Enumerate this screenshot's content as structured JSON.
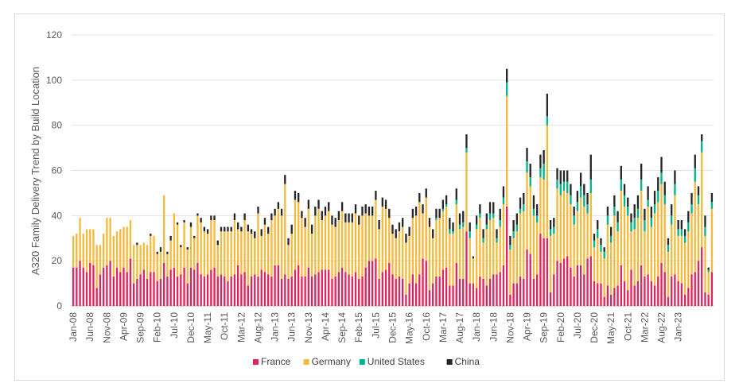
{
  "chart_data": {
    "type": "bar",
    "stacked": true,
    "title": "",
    "ylabel": "A320 Family Delivery Trend by Build Location",
    "xlabel": "",
    "ylim": [
      0,
      120
    ],
    "yticks": [
      0,
      20,
      40,
      60,
      80,
      100,
      120
    ],
    "grid": true,
    "legend_position": "bottom",
    "start_month": "Jan-08",
    "x_tick_labels": [
      "Jan-08",
      "Jun-08",
      "Nov-08",
      "Apr-09",
      "Sep-09",
      "Feb-10",
      "Jul-10",
      "Dec-10",
      "May-11",
      "Oct-11",
      "Mar-12",
      "Aug-12",
      "Jan-13",
      "Jun-13",
      "Nov-13",
      "Apr-14",
      "Sep-14",
      "Feb-15",
      "Jul-15",
      "Dec-15",
      "May-16",
      "Oct-16",
      "Mar-17",
      "Aug-17",
      "Jan-18",
      "Jun-18",
      "Nov-18",
      "Apr-19",
      "Sep-19",
      "Feb-20",
      "Jul-20",
      "Dec-20",
      "May-21",
      "Oct-21",
      "Mar-22",
      "Aug-22",
      "Jan-23"
    ],
    "series": [
      {
        "name": "France",
        "color": "#e0245e",
        "values": [
          17,
          17,
          20,
          17,
          15,
          19,
          18,
          8,
          14,
          17,
          18,
          20,
          13,
          17,
          15,
          17,
          15,
          21,
          10,
          12,
          14,
          16,
          12,
          15,
          15,
          11,
          12,
          19,
          13,
          16,
          17,
          13,
          14,
          17,
          10,
          17,
          16,
          19,
          14,
          13,
          14,
          16,
          17,
          13,
          14,
          13,
          11,
          13,
          14,
          18,
          14,
          15,
          9,
          13,
          14,
          13,
          16,
          15,
          14,
          13,
          18,
          18,
          12,
          14,
          12,
          13,
          16,
          18,
          13,
          13,
          17,
          13,
          14,
          15,
          16,
          16,
          16,
          12,
          13,
          15,
          17,
          15,
          14,
          13,
          15,
          12,
          13,
          17,
          20,
          20,
          21,
          12,
          15,
          16,
          19,
          14,
          12,
          13,
          12,
          5,
          10,
          14,
          10,
          14,
          21,
          20,
          7,
          10,
          13,
          13,
          16,
          17,
          9,
          9,
          19,
          12,
          12,
          33,
          10,
          10,
          8,
          13,
          12,
          9,
          12,
          14,
          14,
          15,
          18,
          44,
          5,
          10,
          10,
          13,
          12,
          25,
          23,
          12,
          14,
          32,
          30,
          30,
          6,
          14,
          20,
          19,
          21,
          22,
          17,
          13,
          18,
          18,
          14,
          21,
          22,
          11,
          10,
          10,
          4,
          9,
          5,
          8,
          9,
          18,
          11,
          7,
          16,
          9,
          11,
          18,
          13,
          14,
          11,
          9,
          13,
          19,
          15,
          4,
          13,
          14,
          11,
          10,
          5,
          8,
          14,
          15,
          20,
          26,
          6,
          5,
          15
        ]
      },
      {
        "name": "Germany",
        "color": "#f5b93c",
        "values": [
          14,
          15,
          19,
          15,
          19,
          15,
          16,
          19,
          13,
          15,
          21,
          19,
          18,
          16,
          19,
          18,
          20,
          17,
          17,
          15,
          13,
          12,
          15,
          16,
          16,
          12,
          12,
          30,
          10,
          13,
          24,
          23,
          12,
          20,
          15,
          18,
          14,
          21,
          23,
          20,
          18,
          22,
          21,
          14,
          19,
          20,
          22,
          20,
          24,
          16,
          19,
          23,
          24,
          19,
          16,
          28,
          15,
          21,
          18,
          25,
          22,
          25,
          28,
          40,
          15,
          19,
          31,
          28,
          26,
          22,
          26,
          19,
          26,
          28,
          22,
          24,
          26,
          24,
          22,
          23,
          25,
          22,
          23,
          24,
          26,
          24,
          27,
          24,
          20,
          20,
          26,
          22,
          29,
          27,
          20,
          18,
          18,
          20,
          23,
          23,
          21,
          25,
          30,
          32,
          20,
          28,
          28,
          20,
          25,
          26,
          26,
          27,
          23,
          23,
          26,
          22,
          23,
          35,
          20,
          11,
          26,
          26,
          16,
          25,
          26,
          25,
          14,
          20,
          27,
          49,
          20,
          20,
          23,
          28,
          30,
          34,
          30,
          28,
          23,
          25,
          26,
          50,
          25,
          18,
          32,
          30,
          30,
          28,
          28,
          23,
          24,
          30,
          30,
          20,
          28,
          15,
          20,
          14,
          17,
          27,
          23,
          32,
          24,
          33,
          33,
          33,
          17,
          25,
          28,
          33,
          20,
          30,
          24,
          32,
          33,
          35,
          30,
          20,
          23,
          35,
          20,
          21,
          23,
          25,
          27,
          40,
          25,
          42,
          25,
          10,
          28
        ]
      },
      {
        "name": "United States",
        "color": "#00b38a",
        "values": [
          0,
          0,
          0,
          0,
          0,
          0,
          0,
          0,
          0,
          0,
          0,
          0,
          0,
          0,
          0,
          0,
          0,
          0,
          0,
          0,
          0,
          0,
          0,
          0,
          0,
          0,
          0,
          0,
          0,
          0,
          0,
          0,
          0,
          0,
          0,
          0,
          0,
          0,
          0,
          0,
          0,
          0,
          0,
          0,
          0,
          0,
          0,
          0,
          0,
          0,
          0,
          0,
          0,
          0,
          0,
          0,
          0,
          0,
          0,
          0,
          0,
          0,
          0,
          0,
          0,
          0,
          0,
          0,
          0,
          0,
          0,
          0,
          0,
          0,
          0,
          0,
          0,
          0,
          0,
          0,
          0,
          0,
          0,
          0,
          0,
          0,
          0,
          0,
          0,
          0,
          0,
          0,
          0,
          0,
          0,
          0,
          0,
          0,
          0,
          0,
          0,
          0,
          0,
          0,
          0,
          0,
          0,
          0,
          1,
          0,
          1,
          1,
          2,
          1,
          2,
          2,
          2,
          2,
          3,
          0,
          2,
          2,
          2,
          2,
          3,
          2,
          2,
          3,
          3,
          6,
          2,
          3,
          3,
          2,
          3,
          5,
          4,
          3,
          3,
          4,
          7,
          4,
          3,
          3,
          4,
          5,
          4,
          5,
          4,
          4,
          4,
          5,
          5,
          4,
          6,
          3,
          4,
          3,
          3,
          4,
          3,
          4,
          4,
          5,
          5,
          4,
          4,
          5,
          4,
          5,
          5,
          3,
          4,
          4,
          5,
          5,
          4,
          3,
          4,
          5,
          3,
          3,
          3,
          4,
          4,
          6,
          4,
          5,
          4,
          1,
          3
        ]
      },
      {
        "name": "China",
        "color": "#262626",
        "values": [
          0,
          0,
          0,
          0,
          0,
          0,
          0,
          0,
          0,
          0,
          0,
          0,
          0,
          0,
          0,
          0,
          0,
          0,
          0,
          1,
          0,
          0,
          0,
          1,
          0,
          1,
          2,
          0,
          1,
          2,
          0,
          1,
          1,
          1,
          1,
          2,
          1,
          1,
          2,
          2,
          2,
          2,
          2,
          2,
          2,
          2,
          2,
          2,
          3,
          3,
          2,
          3,
          3,
          2,
          3,
          3,
          3,
          3,
          3,
          3,
          3,
          3,
          3,
          4,
          3,
          4,
          4,
          4,
          3,
          4,
          4,
          4,
          4,
          4,
          4,
          4,
          4,
          4,
          4,
          4,
          4,
          4,
          4,
          4,
          4,
          4,
          4,
          4,
          4,
          4,
          4,
          4,
          4,
          4,
          4,
          4,
          4,
          4,
          4,
          4,
          4,
          4,
          4,
          4,
          4,
          4,
          4,
          4,
          4,
          4,
          4,
          4,
          5,
          4,
          5,
          5,
          5,
          6,
          4,
          1,
          4,
          4,
          4,
          5,
          5,
          5,
          4,
          5,
          5,
          6,
          4,
          5,
          5,
          5,
          5,
          6,
          6,
          6,
          5,
          6,
          6,
          10,
          4,
          4,
          5,
          6,
          5,
          5,
          5,
          4,
          5,
          6,
          5,
          5,
          11,
          3,
          4,
          3,
          2,
          4,
          4,
          5,
          5,
          6,
          5,
          4,
          4,
          6,
          6,
          7,
          5,
          6,
          5,
          6,
          6,
          7,
          6,
          3,
          5,
          6,
          4,
          4,
          3,
          5,
          5,
          6,
          4,
          3,
          5,
          1,
          4
        ]
      }
    ]
  },
  "legend": {
    "items": [
      {
        "label": "France",
        "color": "#e0245e"
      },
      {
        "label": "Germany",
        "color": "#f5b93c"
      },
      {
        "label": "United States",
        "color": "#00b38a"
      },
      {
        "label": "China",
        "color": "#262626"
      }
    ]
  }
}
